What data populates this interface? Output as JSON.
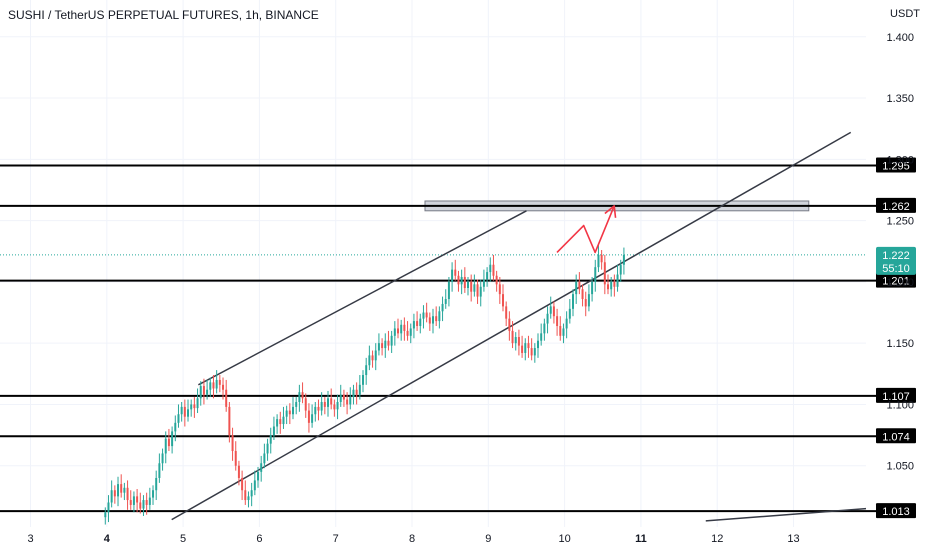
{
  "header": {
    "title": "SUSHI / TetherUS PERPETUAL FUTURES, 1h, BINANCE",
    "currency": "USDT"
  },
  "colors": {
    "up": "#26a69a",
    "down": "#ef5350",
    "level_line": "#000000",
    "level_label_bg": "#000000",
    "channel_line": "#363a45",
    "projection": "#f23645",
    "zone_fill": "#d1d4dc",
    "zone_border": "#787b86",
    "price_line": "#26a69a",
    "grid": "#f0f3fa"
  },
  "chart_data": {
    "type": "candlestick",
    "title": "SUSHI / TetherUS PERPETUAL FUTURES, 1h, BINANCE",
    "ylabel": "USDT",
    "xlim": [
      2.6,
      13.95
    ],
    "ylim": [
      1.0,
      1.43
    ],
    "y_ticks": [
      "1.400",
      "1.350",
      "1.300",
      "1.250",
      "1.200",
      "1.150",
      "1.100",
      "1.050"
    ],
    "x_ticks": [
      {
        "label": "3",
        "x": 3.0,
        "bold": false
      },
      {
        "label": "4",
        "x": 4.0,
        "bold": true
      },
      {
        "label": "5",
        "x": 5.0,
        "bold": false
      },
      {
        "label": "6",
        "x": 6.0,
        "bold": false
      },
      {
        "label": "7",
        "x": 7.0,
        "bold": false
      },
      {
        "label": "8",
        "x": 8.0,
        "bold": false
      },
      {
        "label": "9",
        "x": 9.0,
        "bold": false
      },
      {
        "label": "10",
        "x": 10.0,
        "bold": false
      },
      {
        "label": "11",
        "x": 11.0,
        "bold": true
      },
      {
        "label": "12",
        "x": 12.0,
        "bold": false
      },
      {
        "label": "13",
        "x": 13.0,
        "bold": false
      }
    ],
    "grid": true,
    "horizontal_levels": [
      {
        "value": 1.295,
        "label": "1.295"
      },
      {
        "value": 1.262,
        "label": "1.262"
      },
      {
        "value": 1.201,
        "label": "1.201"
      },
      {
        "value": 1.107,
        "label": "1.107"
      },
      {
        "value": 1.074,
        "label": "1.074"
      },
      {
        "value": 1.013,
        "label": "1.013"
      }
    ],
    "current_price": {
      "value": 1.222,
      "label": "1.222",
      "countdown": "55:10"
    },
    "resistance_zone": {
      "x_start": 8.17,
      "x_end": 13.2,
      "y_low": 1.258,
      "y_high": 1.266
    },
    "channel_lines": [
      {
        "x1": 5.2,
        "y1": 1.116,
        "x2": 9.5,
        "y2": 1.258
      },
      {
        "x1": 4.85,
        "y1": 1.006,
        "x2": 13.75,
        "y2": 1.322
      },
      {
        "x1": 11.85,
        "y1": 1.005,
        "x2": 13.95,
        "y2": 1.015
      }
    ],
    "projection_path": [
      {
        "x": 9.9,
        "y": 1.224
      },
      {
        "x": 10.25,
        "y": 1.246
      },
      {
        "x": 10.4,
        "y": 1.224
      },
      {
        "x": 10.65,
        "y": 1.262
      }
    ],
    "candles": {
      "x_start": 3.98,
      "x_step": 0.0417,
      "closes": [
        1.012,
        1.02,
        1.03,
        1.025,
        1.035,
        1.028,
        1.032,
        1.022,
        1.018,
        1.025,
        1.02,
        1.015,
        1.022,
        1.018,
        1.024,
        1.03,
        1.04,
        1.052,
        1.06,
        1.072,
        1.066,
        1.078,
        1.085,
        1.092,
        1.098,
        1.09,
        1.096,
        1.1,
        1.097,
        1.105,
        1.115,
        1.108,
        1.112,
        1.118,
        1.113,
        1.12,
        1.116,
        1.112,
        1.098,
        1.075,
        1.062,
        1.05,
        1.04,
        1.03,
        1.022,
        1.025,
        1.03,
        1.038,
        1.045,
        1.052,
        1.06,
        1.068,
        1.075,
        1.082,
        1.088,
        1.084,
        1.09,
        1.095,
        1.092,
        1.098,
        1.102,
        1.11,
        1.105,
        1.095,
        1.085,
        1.092,
        1.098,
        1.095,
        1.102,
        1.098,
        1.105,
        1.1,
        1.096,
        1.102,
        1.108,
        1.104,
        1.1,
        1.106,
        1.112,
        1.108,
        1.116,
        1.124,
        1.132,
        1.14,
        1.136,
        1.144,
        1.15,
        1.146,
        1.152,
        1.148,
        1.156,
        1.162,
        1.158,
        1.165,
        1.16,
        1.156,
        1.162,
        1.168,
        1.164,
        1.17,
        1.175,
        1.171,
        1.166,
        1.172,
        1.168,
        1.176,
        1.182,
        1.186,
        1.2,
        1.21,
        1.205,
        1.198,
        1.204,
        1.195,
        1.2,
        1.192,
        1.198,
        1.188,
        1.196,
        1.202,
        1.208,
        1.214,
        1.205,
        1.198,
        1.19,
        1.18,
        1.17,
        1.16,
        1.15,
        1.155,
        1.148,
        1.142,
        1.15,
        1.146,
        1.14,
        1.146,
        1.152,
        1.158,
        1.166,
        1.174,
        1.18,
        1.172,
        1.164,
        1.156,
        1.162,
        1.17,
        1.178,
        1.19,
        1.2,
        1.194,
        1.186,
        1.18,
        1.19,
        1.2,
        1.212,
        1.222,
        1.216,
        1.198,
        1.194,
        1.2,
        1.196,
        1.206,
        1.214,
        1.222
      ]
    }
  }
}
